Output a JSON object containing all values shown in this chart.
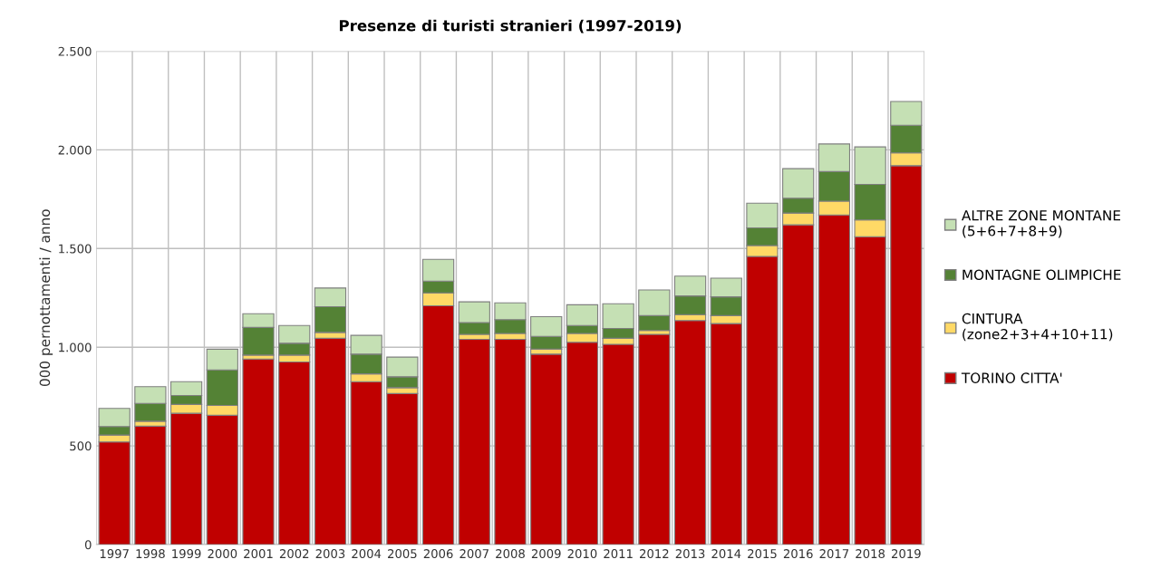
{
  "chart_data": {
    "type": "bar",
    "title": "Presenze di turisti stranieri (1997-2019)",
    "ylabel": "000 pernottamenti / anno",
    "categories": [
      "1997",
      "1998",
      "1999",
      "2000",
      "2001",
      "2002",
      "2003",
      "2004",
      "2005",
      "2006",
      "2007",
      "2008",
      "2009",
      "2010",
      "2011",
      "2012",
      "2013",
      "2014",
      "2015",
      "2016",
      "2017",
      "2018",
      "2019"
    ],
    "stacked": true,
    "series": [
      {
        "name": "TORINO CITTA'",
        "color": "#c00000",
        "values": [
          520,
          600,
          665,
          655,
          940,
          925,
          1045,
          825,
          765,
          1210,
          1040,
          1040,
          965,
          1025,
          1015,
          1065,
          1135,
          1120,
          1460,
          1620,
          1670,
          1560,
          1920
        ]
      },
      {
        "name": "CINTURA\n(zone2+3+4+10+11)",
        "color": "#ffd966",
        "values": [
          35,
          25,
          45,
          50,
          20,
          35,
          30,
          40,
          30,
          65,
          25,
          30,
          25,
          45,
          30,
          20,
          30,
          40,
          55,
          60,
          70,
          85,
          65
        ]
      },
      {
        "name": "MONTAGNE OLIMPICHE",
        "color": "#548235",
        "values": [
          43,
          90,
          45,
          180,
          140,
          60,
          130,
          100,
          55,
          60,
          60,
          70,
          65,
          40,
          50,
          75,
          95,
          95,
          90,
          75,
          150,
          180,
          140
        ]
      },
      {
        "name": "ALTRE ZONE MONTANE\n(5+6+7+8+9)",
        "color": "#c5e0b4",
        "values": [
          92,
          85,
          70,
          105,
          70,
          90,
          95,
          95,
          100,
          110,
          105,
          85,
          100,
          105,
          125,
          130,
          100,
          95,
          125,
          150,
          140,
          190,
          120
        ]
      }
    ],
    "ylim": [
      0,
      2500
    ],
    "yticks": [
      0,
      500,
      {
        "value": 1000,
        "label": "1.000"
      },
      {
        "value": 1500,
        "label": "1.500"
      },
      {
        "value": 2000,
        "label": "2.000"
      },
      {
        "value": 2500,
        "label": "2.500"
      }
    ],
    "grid": true,
    "legend": "right"
  }
}
